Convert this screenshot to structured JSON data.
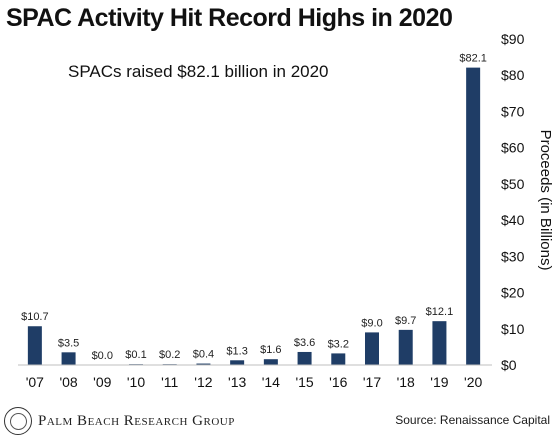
{
  "title": "SPAC Activity Hit Record Highs in 2020",
  "annotation": "SPACs raised $82.1 billion in 2020",
  "footer": {
    "brand": "Palm Beach Research Group",
    "source": "Source: Renaissance Capital"
  },
  "chart_data": {
    "type": "bar",
    "title": "SPAC Activity Hit Record Highs in 2020",
    "categories": [
      "'07",
      "'08",
      "'09",
      "'10",
      "'11",
      "'12",
      "'13",
      "'14",
      "'15",
      "'16",
      "'17",
      "'18",
      "'19",
      "'20"
    ],
    "values": [
      10.7,
      3.5,
      0.0,
      0.1,
      0.2,
      0.4,
      1.3,
      1.6,
      3.6,
      3.2,
      9.0,
      9.7,
      12.1,
      82.1
    ],
    "data_labels": [
      "$10.7",
      "$3.5",
      "$0.0",
      "$0.1",
      "$0.2",
      "$0.4",
      "$1.3",
      "$1.6",
      "$3.6",
      "$3.2",
      "$9.0",
      "$9.7",
      "$12.1",
      "$82.1"
    ],
    "ylabel": "Proceeds (in Billions)",
    "ylim": [
      0,
      90
    ],
    "yticks": [
      "$0",
      "$10",
      "$20",
      "$30",
      "$40",
      "$50",
      "$60",
      "$70",
      "$80",
      "$90"
    ],
    "y_axis_side": "right",
    "grid": false,
    "bar_color": "#1f3d66"
  }
}
